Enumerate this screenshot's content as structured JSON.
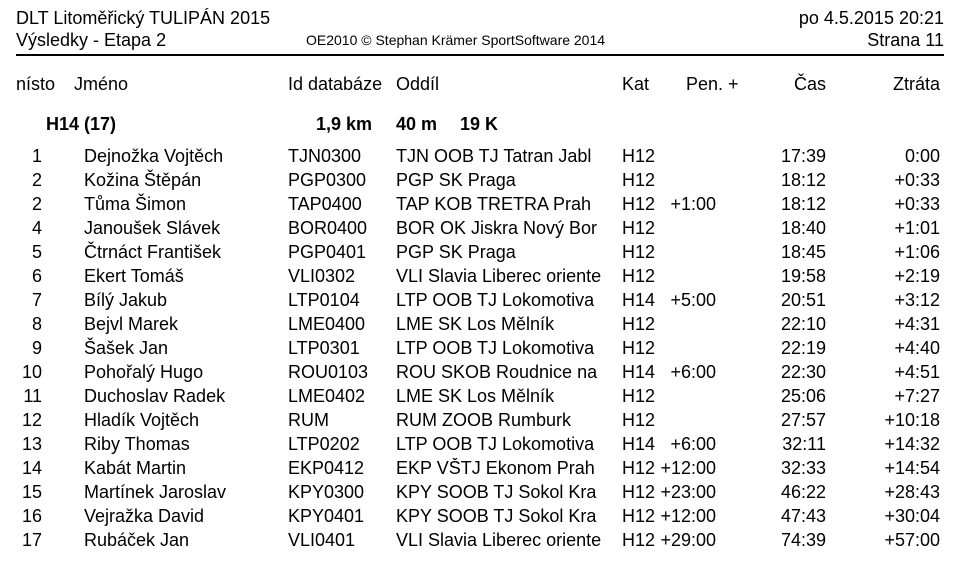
{
  "header": {
    "title_left_top": "DLT Litoměřický TULIPÁN 2015",
    "title_left_bottom": "Výsledky - Etapa 2",
    "title_center": "OE2010 © Stephan Krämer SportSoftware 2014",
    "title_right_top": "po 4.5.2015 20:21",
    "title_right_bottom": "Strana 11"
  },
  "columns": {
    "place": "nísto",
    "name": "Jméno",
    "id": "Id databáze",
    "club": "Oddíl",
    "kat": "Kat",
    "pen": "Pen. +",
    "time": "Čas",
    "loss": "Ztráta"
  },
  "category": {
    "label": "H14 (17)",
    "dist": "1,9 km",
    "climb": "40 m",
    "controls": "19 K"
  },
  "rows": [
    {
      "place": "1",
      "name": "Dejnožka Vojtěch",
      "id": "TJN0300",
      "club": "TJN OOB TJ Tatran Jabl",
      "kat": "H12",
      "pen": "",
      "time": "17:39",
      "loss": "0:00"
    },
    {
      "place": "2",
      "name": "Kožina Štěpán",
      "id": "PGP0300",
      "club": "PGP SK Praga",
      "kat": "H12",
      "pen": "",
      "time": "18:12",
      "loss": "+0:33"
    },
    {
      "place": "2",
      "name": "Tůma Šimon",
      "id": "TAP0400",
      "club": "TAP KOB TRETRA Prah",
      "kat": "H12",
      "pen": "+1:00",
      "time": "18:12",
      "loss": "+0:33"
    },
    {
      "place": "4",
      "name": "Janoušek Slávek",
      "id": "BOR0400",
      "club": "BOR OK Jiskra Nový Bor",
      "kat": "H12",
      "pen": "",
      "time": "18:40",
      "loss": "+1:01"
    },
    {
      "place": "5",
      "name": "Čtrnáct František",
      "id": "PGP0401",
      "club": "PGP SK Praga",
      "kat": "H12",
      "pen": "",
      "time": "18:45",
      "loss": "+1:06"
    },
    {
      "place": "6",
      "name": "Ekert Tomáš",
      "id": "VLI0302",
      "club": "VLI Slavia Liberec oriente",
      "kat": "H12",
      "pen": "",
      "time": "19:58",
      "loss": "+2:19"
    },
    {
      "place": "7",
      "name": "Bílý Jakub",
      "id": "LTP0104",
      "club": "LTP OOB TJ Lokomotiva",
      "kat": "H14",
      "pen": "+5:00",
      "time": "20:51",
      "loss": "+3:12"
    },
    {
      "place": "8",
      "name": "Bejvl Marek",
      "id": "LME0400",
      "club": "LME SK Los Mělník",
      "kat": "H12",
      "pen": "",
      "time": "22:10",
      "loss": "+4:31"
    },
    {
      "place": "9",
      "name": "Šašek Jan",
      "id": "LTP0301",
      "club": "LTP OOB TJ Lokomotiva",
      "kat": "H12",
      "pen": "",
      "time": "22:19",
      "loss": "+4:40"
    },
    {
      "place": "10",
      "name": "Pohořalý Hugo",
      "id": "ROU0103",
      "club": "ROU SKOB Roudnice na",
      "kat": "H14",
      "pen": "+6:00",
      "time": "22:30",
      "loss": "+4:51"
    },
    {
      "place": "11",
      "name": "Duchoslav Radek",
      "id": "LME0402",
      "club": "LME SK Los Mělník",
      "kat": "H12",
      "pen": "",
      "time": "25:06",
      "loss": "+7:27"
    },
    {
      "place": "12",
      "name": "Hladík Vojtěch",
      "id": "RUM",
      "club": "RUM ZOOB Rumburk",
      "kat": "H12",
      "pen": "",
      "time": "27:57",
      "loss": "+10:18"
    },
    {
      "place": "13",
      "name": "Riby Thomas",
      "id": "LTP0202",
      "club": "LTP OOB TJ Lokomotiva",
      "kat": "H14",
      "pen": "+6:00",
      "time": "32:11",
      "loss": "+14:32"
    },
    {
      "place": "14",
      "name": "Kabát Martin",
      "id": "EKP0412",
      "club": "EKP VŠTJ Ekonom Prah",
      "kat": "H12",
      "pen": "+12:00",
      "time": "32:33",
      "loss": "+14:54"
    },
    {
      "place": "15",
      "name": "Martínek Jaroslav",
      "id": "KPY0300",
      "club": "KPY SOOB TJ Sokol Kra",
      "kat": "H12",
      "pen": "+23:00",
      "time": "46:22",
      "loss": "+28:43"
    },
    {
      "place": "16",
      "name": "Vejražka David",
      "id": "KPY0401",
      "club": "KPY SOOB TJ Sokol Kra",
      "kat": "H12",
      "pen": "+12:00",
      "time": "47:43",
      "loss": "+30:04"
    },
    {
      "place": "17",
      "name": "Rubáček Jan",
      "id": "VLI0401",
      "club": "VLI Slavia Liberec oriente",
      "kat": "H12",
      "pen": "+29:00",
      "time": "74:39",
      "loss": "+57:00"
    }
  ]
}
